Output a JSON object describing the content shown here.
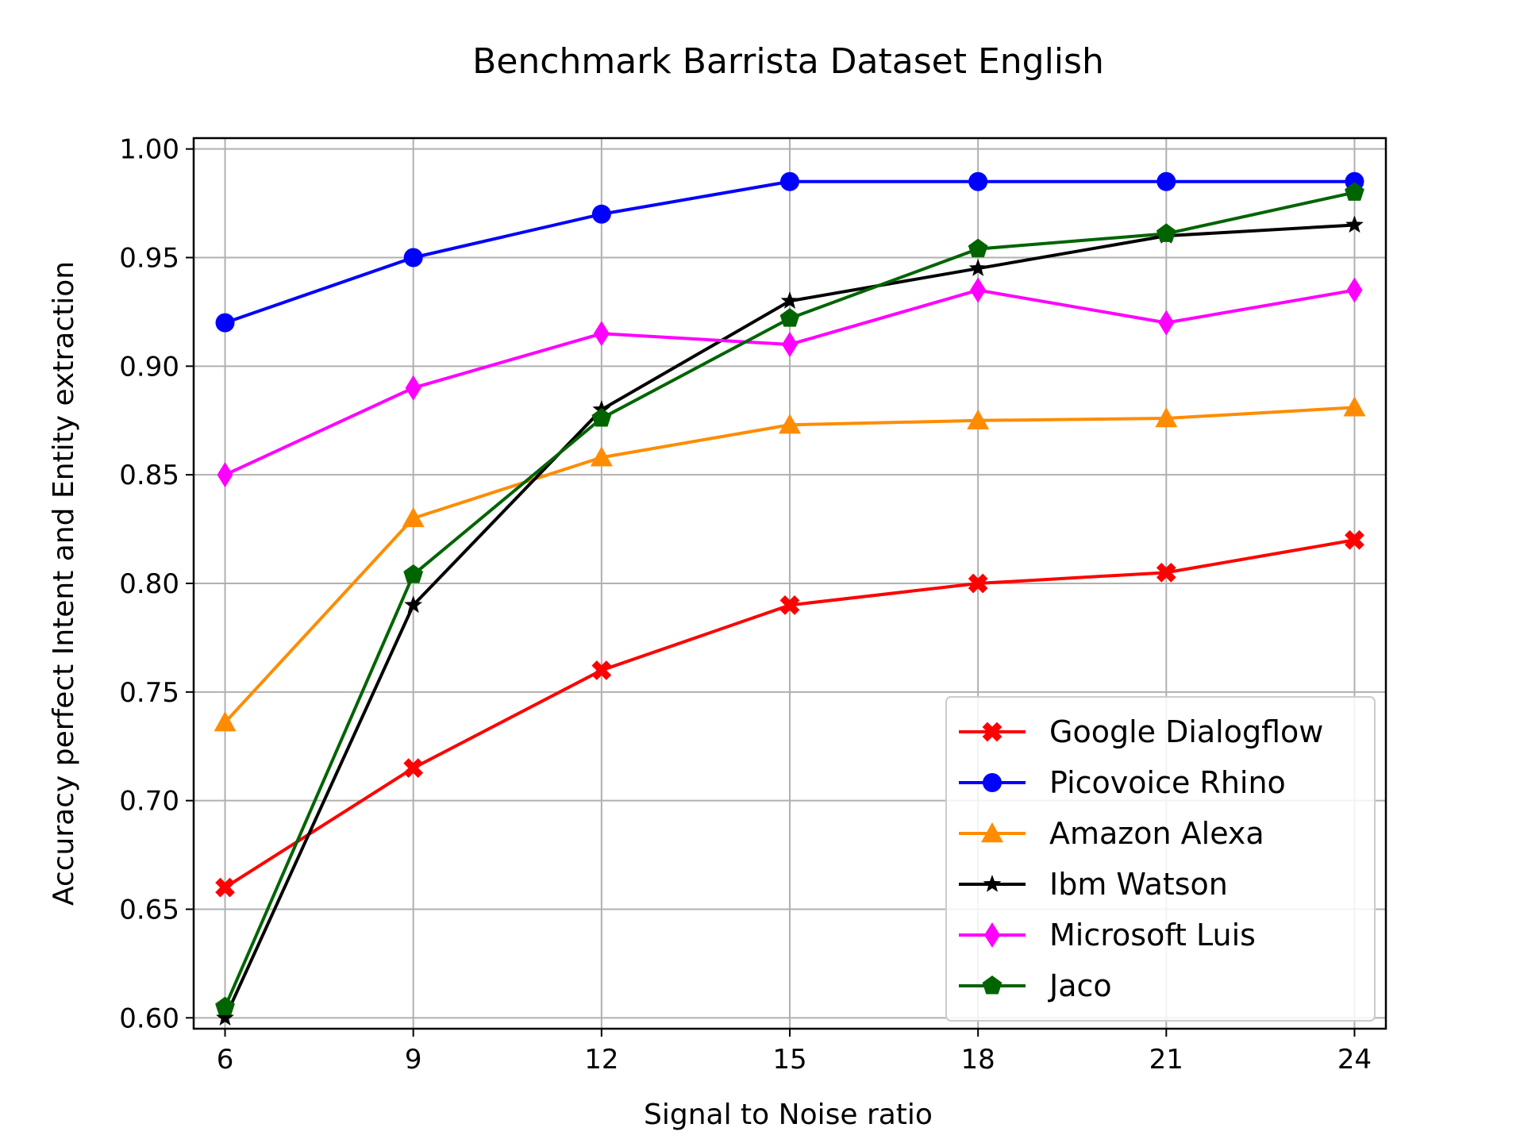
{
  "chart_data": {
    "type": "line",
    "title": "Benchmark Barrista Dataset English",
    "xlabel": "Signal to Noise ratio",
    "ylabel": "Accuracy perfect Intent and Entity extraction",
    "x": [
      6,
      9,
      12,
      15,
      18,
      21,
      24
    ],
    "xticks": [
      "6",
      "9",
      "12",
      "15",
      "18",
      "21",
      "24"
    ],
    "yticks": [
      "0.60",
      "0.65",
      "0.70",
      "0.75",
      "0.80",
      "0.85",
      "0.90",
      "0.95",
      "1.00"
    ],
    "xlim": [
      5.5,
      24.5
    ],
    "ylim": [
      0.595,
      1.005
    ],
    "grid": true,
    "legend_position": "lower right",
    "series": [
      {
        "name": "Google Dialogflow",
        "color": "#ff0000",
        "marker": "x-filled",
        "values": [
          0.66,
          0.715,
          0.76,
          0.79,
          0.8,
          0.805,
          0.82
        ]
      },
      {
        "name": "Picovoice Rhino",
        "color": "#0000ff",
        "marker": "circle",
        "values": [
          0.92,
          0.95,
          0.97,
          0.985,
          0.985,
          0.985,
          0.985
        ]
      },
      {
        "name": "Amazon Alexa",
        "color": "#ff8c00",
        "marker": "triangle",
        "values": [
          0.736,
          0.83,
          0.858,
          0.873,
          0.875,
          0.876,
          0.881
        ]
      },
      {
        "name": "Ibm Watson",
        "color": "#000000",
        "marker": "star",
        "values": [
          0.6,
          0.79,
          0.88,
          0.93,
          0.945,
          0.96,
          0.965
        ]
      },
      {
        "name": "Microsoft Luis",
        "color": "#ff00ff",
        "marker": "thin-diamond",
        "values": [
          0.85,
          0.89,
          0.915,
          0.91,
          0.935,
          0.92,
          0.935
        ]
      },
      {
        "name": "Jaco",
        "color": "#006400",
        "marker": "pentagon",
        "values": [
          0.605,
          0.804,
          0.876,
          0.922,
          0.954,
          0.961,
          0.98
        ]
      }
    ]
  }
}
